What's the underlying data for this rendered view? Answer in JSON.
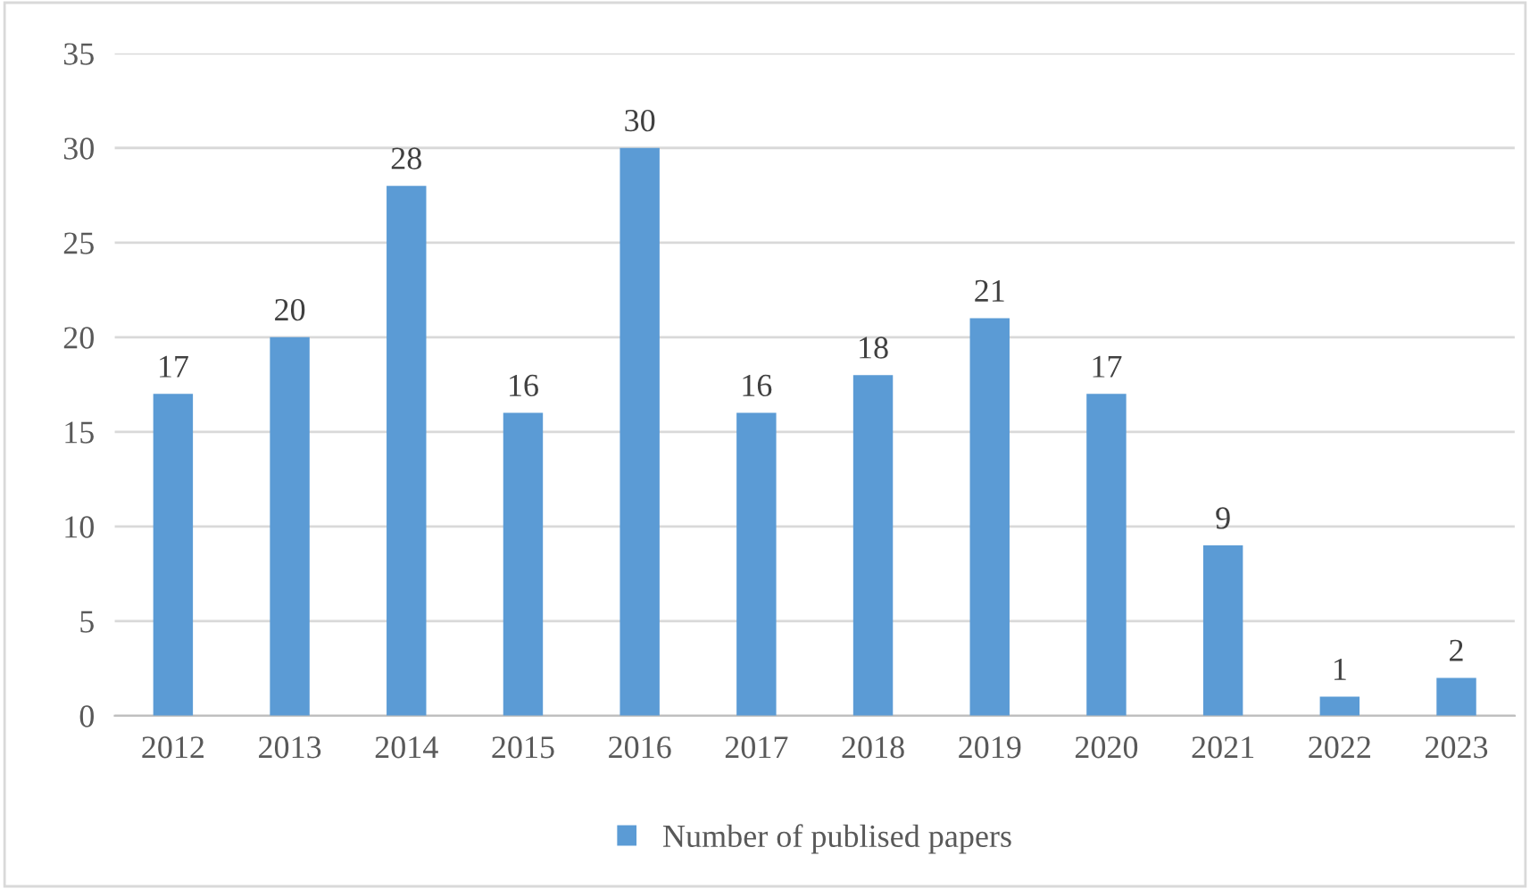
{
  "chart_data": {
    "type": "bar",
    "categories": [
      "2012",
      "2013",
      "2014",
      "2015",
      "2016",
      "2017",
      "2018",
      "2019",
      "2020",
      "2021",
      "2022",
      "2023"
    ],
    "series": [
      {
        "name": "Number of publised papers",
        "color": "#5b9bd5",
        "values": [
          17,
          20,
          28,
          16,
          30,
          16,
          18,
          21,
          17,
          9,
          1,
          2
        ]
      }
    ],
    "ylim": [
      0,
      35
    ],
    "yticks": [
      0,
      5,
      10,
      15,
      20,
      25,
      30,
      35
    ],
    "grid": "y",
    "legend": "bottom",
    "data_labels": true
  }
}
